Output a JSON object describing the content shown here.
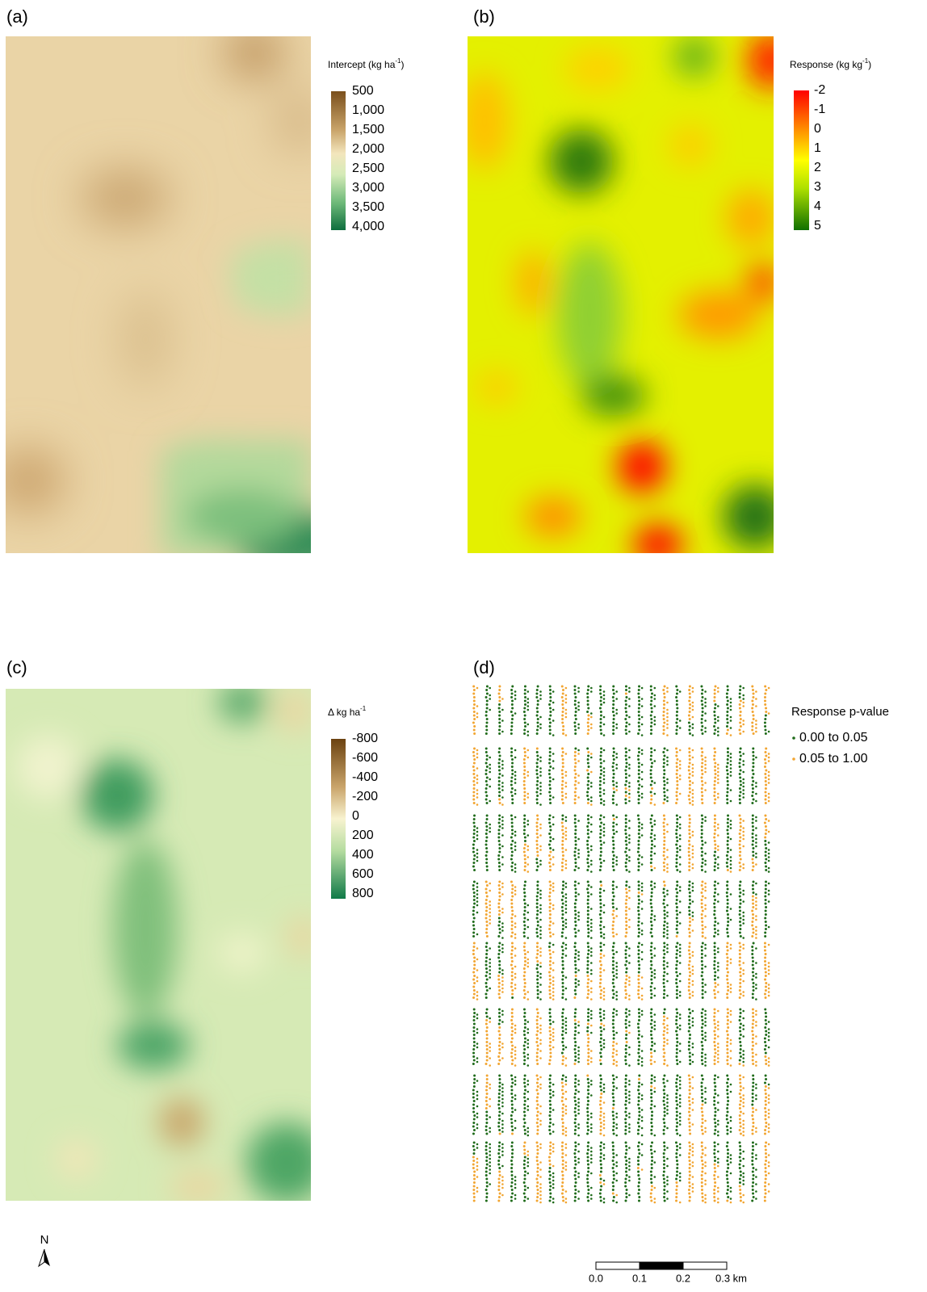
{
  "panels": [
    {
      "label": "(a)",
      "legend_title": {
        "text": "Intercept (kg ha",
        "sup": "-1",
        "tail": ")"
      },
      "legend_labels": [
        "500",
        "1,000",
        "1,500",
        "2,000",
        "2,500",
        "3,000",
        "3,500",
        "4,000"
      ]
    },
    {
      "label": "(b)",
      "legend_title": {
        "text": "Response (kg kg",
        "sup": "-1",
        "tail": ")"
      },
      "legend_labels": [
        "-2",
        "-1",
        "0",
        "1",
        "2",
        "3",
        "4",
        "5"
      ]
    },
    {
      "label": "(c)",
      "legend_title": {
        "text": "Δ kg ha",
        "sup": "-1"
      },
      "legend_labels": [
        "-800",
        "-600",
        "-400",
        "-200",
        "0",
        "200",
        "400",
        "600",
        "800"
      ]
    },
    {
      "label": "(d)",
      "legend_title": {
        "text": "Response p-value"
      },
      "legend_labels": [
        "0.00 to 0.05",
        "0.05 to 1.00"
      ]
    }
  ],
  "north": "N",
  "scale_bar": {
    "labels": [
      "0.0",
      "0.1",
      "0.2",
      "0.3 km"
    ]
  }
}
